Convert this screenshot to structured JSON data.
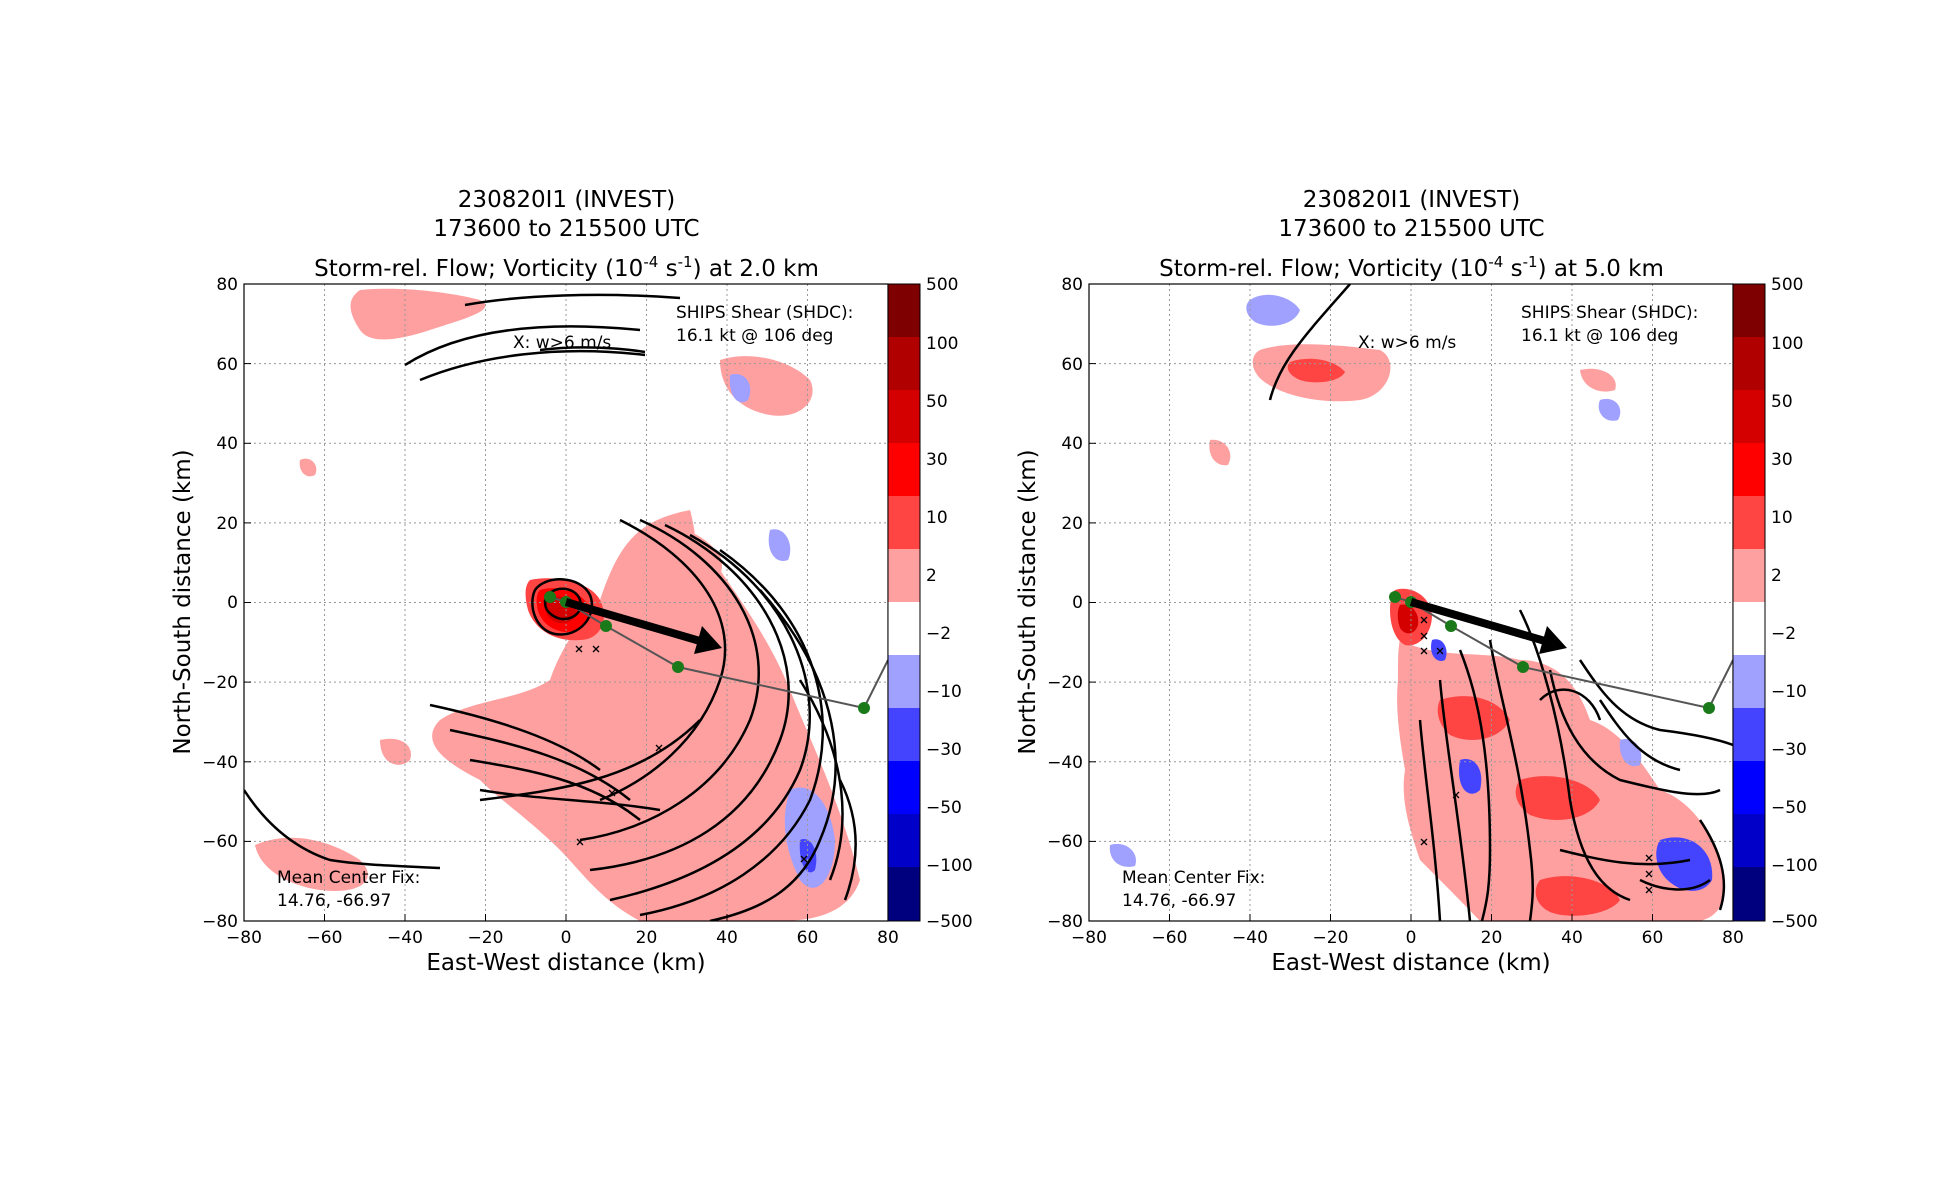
{
  "chart_data": [
    {
      "type": "heatmap",
      "title_lines": [
        "230820I1 (INVEST)",
        "173600 to 215500 UTC"
      ],
      "title_main": "Storm-rel. Flow; Vorticity (10",
      "title_exp1": "-4",
      "title_mid": " s",
      "title_exp2": "-1",
      "title_end": ") at 2.0 km",
      "xlabel": "East-West distance (km)",
      "ylabel": "North-South distance (km)",
      "xlim": [
        -80,
        80
      ],
      "ylim": [
        -80,
        80
      ],
      "xticks": [
        "−80",
        "−60",
        "−40",
        "−20",
        "0",
        "20",
        "40",
        "60",
        "80"
      ],
      "yticks": [
        "80",
        "60",
        "40",
        "20",
        "0",
        "−20",
        "−40",
        "−60",
        "−80"
      ],
      "grid": true,
      "annotations": {
        "shear_line1": "SHIPS Shear (SHDC):",
        "shear_line2": "16.1 kt @ 106 deg",
        "updraft": "X: w>6 m/s",
        "center_line1": "Mean Center Fix:",
        "center_line2": "14.76, -66.97"
      },
      "center_track": [
        [
          -4,
          2
        ],
        [
          0,
          0
        ],
        [
          10,
          -6
        ],
        [
          28,
          -16
        ],
        [
          74,
          -26
        ],
        [
          80,
          -12
        ]
      ],
      "shear_vector": {
        "from": [
          0,
          0
        ],
        "to": [
          40,
          -12
        ]
      },
      "colorbar_levels": [
        "500",
        "100",
        "50",
        "30",
        "10",
        "2",
        "−2",
        "−10",
        "−30",
        "−50",
        "−100",
        "−500"
      ]
    },
    {
      "type": "heatmap",
      "title_lines": [
        "230820I1 (INVEST)",
        "173600 to 215500 UTC"
      ],
      "title_main": "Storm-rel. Flow; Vorticity (10",
      "title_exp1": "-4",
      "title_mid": " s",
      "title_exp2": "-1",
      "title_end": ") at 5.0 km",
      "xlabel": "East-West distance (km)",
      "ylabel": "North-South distance (km)",
      "xlim": [
        -80,
        80
      ],
      "ylim": [
        -80,
        80
      ],
      "xticks": [
        "−80",
        "−60",
        "−40",
        "−20",
        "0",
        "20",
        "40",
        "60",
        "80"
      ],
      "yticks": [
        "80",
        "60",
        "40",
        "20",
        "0",
        "−20",
        "−40",
        "−60",
        "−80"
      ],
      "grid": true,
      "annotations": {
        "shear_line1": "SHIPS Shear (SHDC):",
        "shear_line2": "16.1 kt @ 106 deg",
        "updraft": "X: w>6 m/s",
        "center_line1": "Mean Center Fix:",
        "center_line2": "14.76, -66.97"
      },
      "center_track": [
        [
          -4,
          2
        ],
        [
          0,
          0
        ],
        [
          10,
          -6
        ],
        [
          28,
          -16
        ],
        [
          74,
          -26
        ],
        [
          80,
          -12
        ]
      ],
      "shear_vector": {
        "from": [
          0,
          0
        ],
        "to": [
          40,
          -12
        ]
      },
      "colorbar_levels": [
        "500",
        "100",
        "50",
        "30",
        "10",
        "2",
        "−2",
        "−10",
        "−30",
        "−50",
        "−100",
        "−500"
      ]
    }
  ],
  "colors": {
    "colorbar": [
      "#7f0000",
      "#b00000",
      "#d40000",
      "#ff0000",
      "#ff4444",
      "#ffa0a0",
      "#ffffff",
      "#a0a0ff",
      "#4444ff",
      "#0000ff",
      "#0000c8",
      "#00007f"
    ],
    "track": "#555555",
    "fix_point": "#1a7a1a"
  }
}
